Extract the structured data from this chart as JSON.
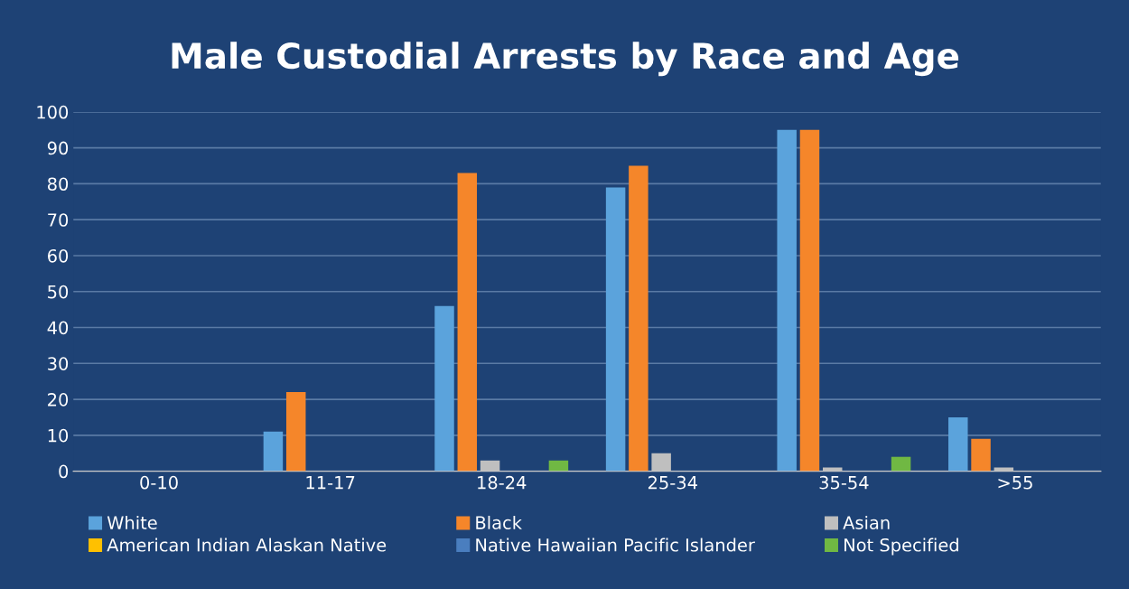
{
  "chart_data": {
    "type": "bar",
    "title": "Male Custodial Arrests by Race and Age",
    "categories": [
      "0-10",
      "11-17",
      "18-24",
      "25-34",
      "35-54",
      ">55"
    ],
    "series": [
      {
        "name": "White",
        "color": "#5ba3dc",
        "values": [
          0,
          11,
          46,
          79,
          95,
          15
        ]
      },
      {
        "name": "Black",
        "color": "#f5862a",
        "values": [
          0,
          22,
          83,
          85,
          95,
          9
        ]
      },
      {
        "name": "Asian",
        "color": "#bfbfbf",
        "values": [
          0,
          0,
          3,
          5,
          1,
          1
        ]
      },
      {
        "name": "American Indian Alaskan Native",
        "color": "#ffc000",
        "values": [
          0,
          0,
          0,
          0,
          0,
          0
        ]
      },
      {
        "name": "Native Hawaiian Pacific Islander",
        "color": "#4a7ebf",
        "values": [
          0,
          0,
          0,
          0,
          0,
          0
        ]
      },
      {
        "name": "Not Specified",
        "color": "#70b843",
        "values": [
          0,
          0,
          3,
          0,
          4,
          0
        ]
      }
    ],
    "ylim": [
      0,
      100
    ],
    "yticks": [
      0,
      10,
      20,
      30,
      40,
      50,
      60,
      70,
      80,
      90,
      100
    ],
    "grid": "y",
    "legend": "bottom"
  }
}
